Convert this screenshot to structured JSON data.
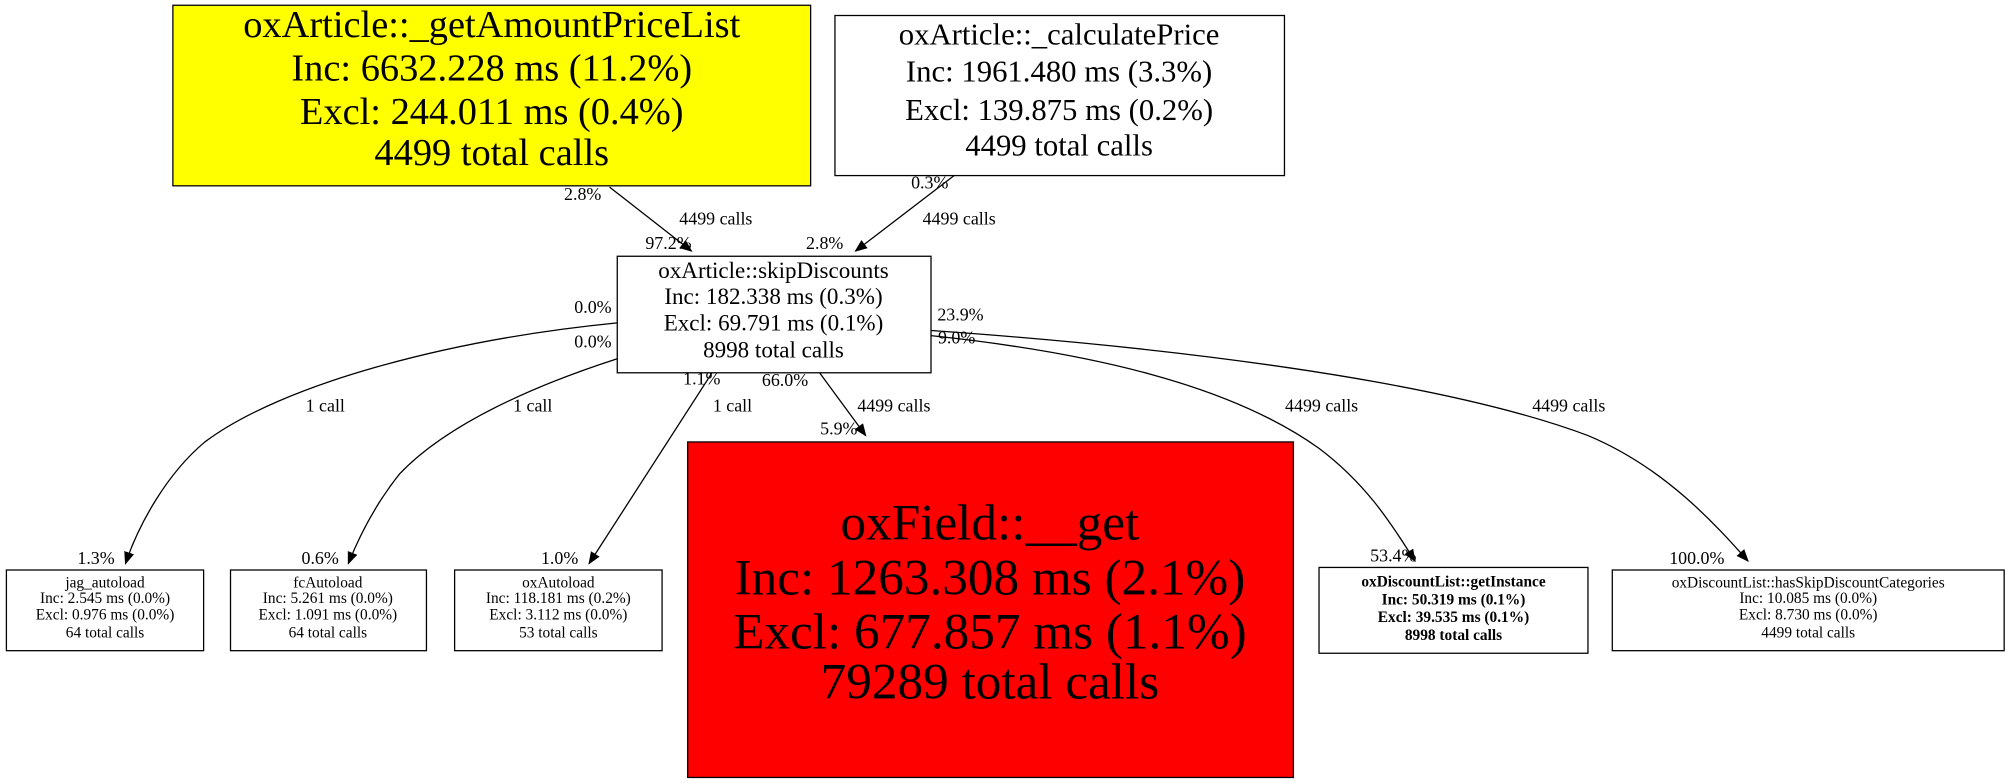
{
  "nodes": [
    {
      "lines": [
        "oxArticle::_getAmountPriceList",
        "Inc: 6632.228 ms (11.2%)",
        "Excl: 244.011 ms (0.4%)",
        "4499 total calls"
      ]
    },
    {
      "lines": [
        "oxArticle::_calculatePrice",
        "Inc: 1961.480 ms (3.3%)",
        "Excl: 139.875 ms (0.2%)",
        "4499 total calls"
      ]
    },
    {
      "lines": [
        "oxArticle::skipDiscounts",
        "Inc: 182.338 ms (0.3%)",
        "Excl: 69.791 ms (0.1%)",
        "8998 total calls"
      ]
    },
    {
      "lines": [
        "jag_autoload",
        "Inc: 2.545 ms (0.0%)",
        "Excl: 0.976 ms (0.0%)",
        "64 total calls"
      ]
    },
    {
      "lines": [
        "fcAutoload",
        "Inc: 5.261 ms (0.0%)",
        "Excl: 1.091 ms (0.0%)",
        "64 total calls"
      ]
    },
    {
      "lines": [
        "oxAutoload",
        "Inc: 118.181 ms (0.2%)",
        "Excl: 3.112 ms (0.0%)",
        "53 total calls"
      ]
    },
    {
      "lines": [
        "oxField::__get",
        "Inc: 1263.308 ms (2.1%)",
        "Excl: 677.857 ms (1.1%)",
        "79289 total calls"
      ]
    },
    {
      "lines": [
        "oxDiscountList::getInstance",
        "Inc: 50.319 ms (0.1%)",
        "Excl: 39.535 ms (0.1%)",
        "8998 total calls"
      ]
    },
    {
      "lines": [
        "oxDiscountList::hasSkipDiscountCategories",
        "Inc: 10.085 ms (0.0%)",
        "Excl: 8.730 ms (0.0%)",
        "4499 total calls"
      ]
    }
  ],
  "edges": [
    {
      "calls": "4499 calls",
      "source_pct": "2.8%",
      "target_pct": "97.2%"
    },
    {
      "calls": "4499 calls",
      "source_pct": "0.3%",
      "target_pct": "2.8%"
    },
    {
      "calls": "1 call",
      "source_pct": "0.0%",
      "target_pct": "1.3%"
    },
    {
      "calls": "1 call",
      "source_pct": "0.0%",
      "target_pct": "0.6%"
    },
    {
      "calls": "1 call",
      "source_pct": "1.1%",
      "target_pct": "1.0%"
    },
    {
      "calls": "4499 calls",
      "source_pct": "66.0%",
      "target_pct": "5.9%"
    },
    {
      "calls": "4499 calls",
      "source_pct": "23.9%",
      "target_pct": "53.4%"
    },
    {
      "calls": "4499 calls",
      "source_pct": "9.0%",
      "target_pct": "100.0%"
    }
  ]
}
